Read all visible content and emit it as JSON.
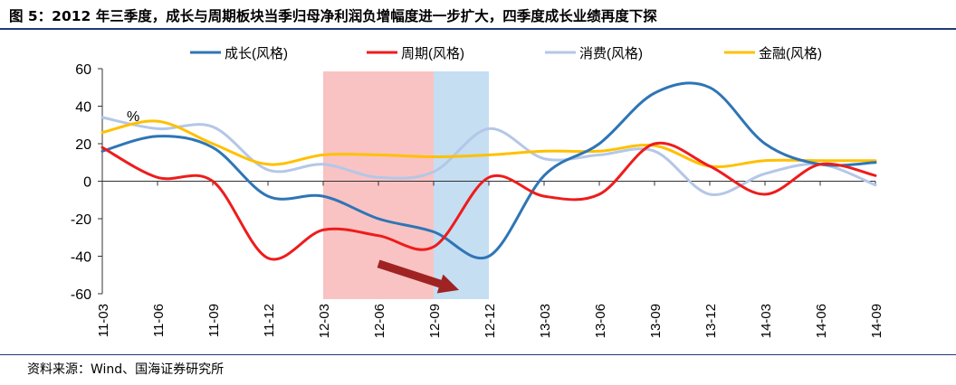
{
  "title": "图 5：2012 年三季度，成长与周期板块当季归母净利润负增幅度进一步扩大，四季度成长业绩再度下探",
  "source": "资料来源：Wind、国海证券研究所",
  "chart_data": {
    "type": "line",
    "unit_label": "%",
    "ylim": [
      -60,
      60
    ],
    "yticks": [
      60,
      40,
      20,
      0,
      -20,
      -40,
      -60
    ],
    "categories": [
      "11-03",
      "11-06",
      "11-09",
      "11-12",
      "12-03",
      "12-06",
      "12-09",
      "12-12",
      "13-03",
      "13-06",
      "13-09",
      "13-12",
      "14-03",
      "14-06",
      "14-09"
    ],
    "legend_position": "top",
    "grid": false,
    "highlights": [
      {
        "from": "12-03",
        "to": "12-09",
        "color": "#f9c3c3"
      },
      {
        "from": "12-09",
        "to": "12-12",
        "color": "#c5def2"
      }
    ],
    "arrow": {
      "from": [
        "12-06",
        -44
      ],
      "to": [
        "12-09",
        -58
      ],
      "color": "#a02323"
    },
    "series": [
      {
        "name": "成长(风格)",
        "color": "#2e75b6",
        "values": [
          16,
          24,
          18,
          -8,
          -8,
          -20,
          -27,
          -40,
          3,
          20,
          47,
          50,
          20,
          9,
          10
        ]
      },
      {
        "name": "周期(风格)",
        "color": "#ee1c1c",
        "values": [
          18,
          2,
          0,
          -41,
          -26,
          -29,
          -35,
          2,
          -8,
          -7,
          20,
          8,
          -7,
          9,
          3
        ]
      },
      {
        "name": "消费(风格)",
        "color": "#b4c7e7",
        "values": [
          34,
          28,
          29,
          6,
          9,
          2,
          5,
          28,
          12,
          14,
          16,
          -7,
          4,
          9,
          -2
        ]
      },
      {
        "name": "金融(风格)",
        "color": "#ffc000",
        "values": [
          26,
          32,
          20,
          9,
          14,
          14,
          13,
          14,
          16,
          16,
          19,
          8,
          11,
          11,
          11
        ]
      }
    ]
  }
}
